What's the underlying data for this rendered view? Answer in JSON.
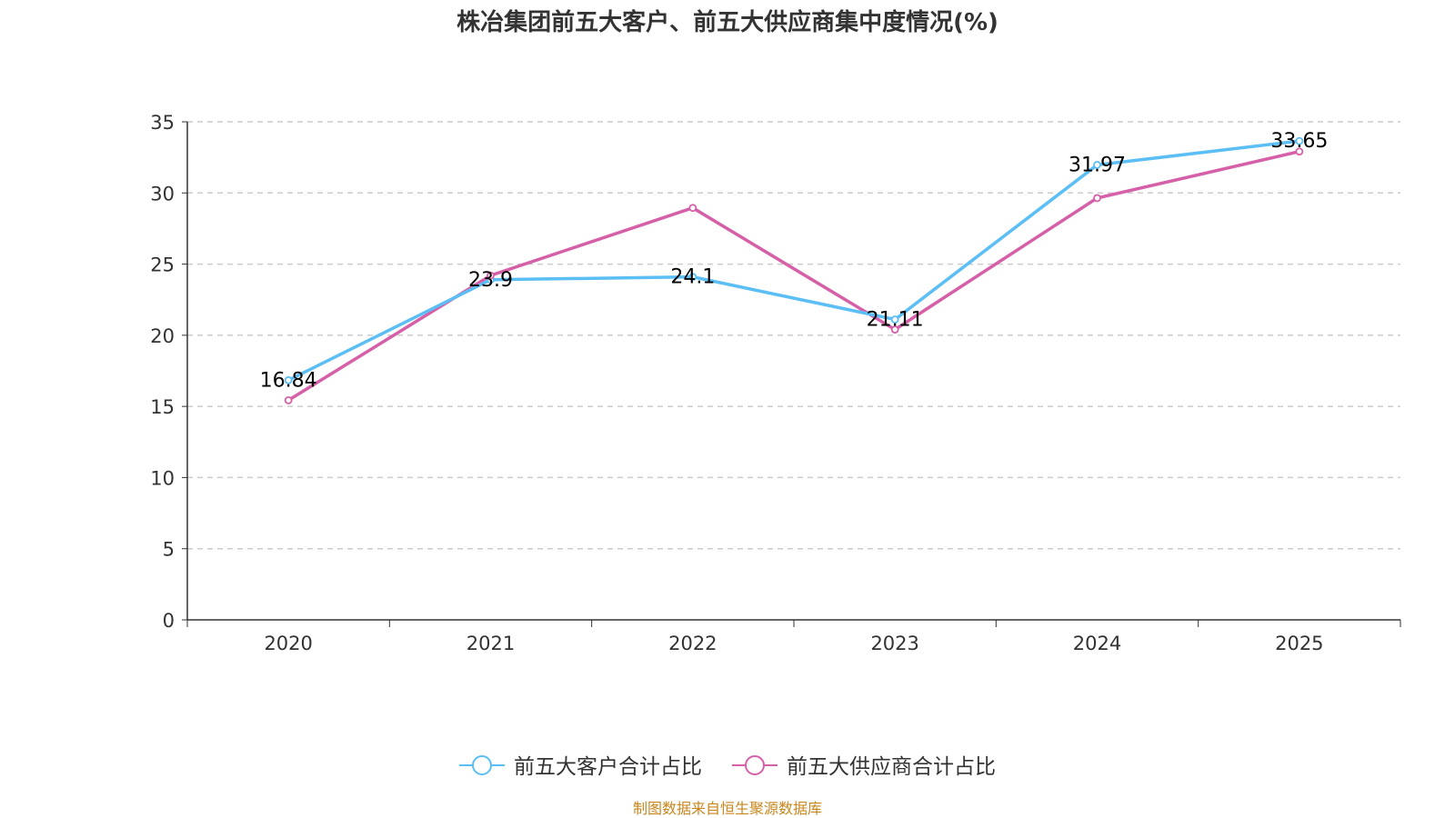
{
  "chart_data": {
    "type": "line",
    "title": "株冶集团前五大客户、前五大供应商集中度情况(%)",
    "categories": [
      "2020",
      "2021",
      "2022",
      "2023",
      "2024",
      "2025"
    ],
    "ylim": [
      0,
      35
    ],
    "yticks": [
      0,
      5,
      10,
      15,
      20,
      25,
      30,
      35
    ],
    "grid": true,
    "legend_position": "bottom",
    "series": [
      {
        "name": "前五大客户合计占比",
        "color": "#5bbef5",
        "values": [
          16.84,
          23.9,
          24.1,
          21.11,
          31.97,
          33.65
        ],
        "labels": [
          "16.84",
          "23.9",
          "24.1",
          "21.11",
          "31.97",
          "33.65"
        ]
      },
      {
        "name": "前五大供应商合计占比",
        "color": "#d660a8",
        "values": [
          15.43,
          24.2,
          28.95,
          20.4,
          29.64,
          32.91
        ]
      }
    ]
  },
  "source": "制图数据来自恒生聚源数据库"
}
